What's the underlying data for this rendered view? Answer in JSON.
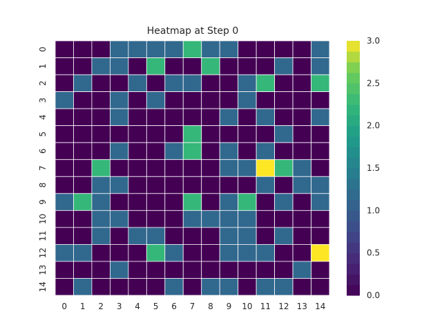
{
  "chart_data": {
    "type": "heatmap",
    "title": "Heatmap at Step 0",
    "xlabel": "",
    "ylabel": "",
    "x_categories": [
      "0",
      "1",
      "2",
      "3",
      "4",
      "5",
      "6",
      "7",
      "8",
      "9",
      "10",
      "11",
      "12",
      "13",
      "14"
    ],
    "y_categories": [
      "0",
      "1",
      "2",
      "3",
      "4",
      "5",
      "6",
      "7",
      "8",
      "9",
      "10",
      "11",
      "12",
      "13",
      "14"
    ],
    "values": [
      [
        0,
        0,
        0,
        1,
        1,
        1,
        1,
        2,
        1,
        1,
        0,
        0,
        0,
        0,
        1
      ],
      [
        0,
        0,
        1,
        1,
        0,
        2,
        0,
        0,
        2,
        0,
        0,
        0,
        1,
        0,
        1
      ],
      [
        0,
        1,
        0,
        0,
        1,
        0,
        1,
        1,
        0,
        0,
        1,
        2,
        0,
        0,
        2
      ],
      [
        1,
        0,
        0,
        1,
        0,
        1,
        0,
        0,
        0,
        0,
        1,
        0,
        0,
        0,
        0
      ],
      [
        0,
        0,
        0,
        1,
        0,
        0,
        0,
        0,
        0,
        1,
        0,
        1,
        0,
        0,
        1
      ],
      [
        0,
        0,
        0,
        0,
        0,
        0,
        0,
        2,
        0,
        0,
        0,
        0,
        1,
        0,
        0
      ],
      [
        0,
        0,
        0,
        1,
        0,
        0,
        1,
        2,
        0,
        1,
        0,
        1,
        0,
        0,
        0
      ],
      [
        0,
        0,
        2,
        0,
        0,
        0,
        0,
        0,
        0,
        1,
        1,
        3,
        2,
        1,
        0
      ],
      [
        0,
        0,
        1,
        1,
        0,
        0,
        0,
        0,
        0,
        0,
        0,
        1,
        0,
        1,
        1
      ],
      [
        1,
        2,
        1,
        0,
        0,
        0,
        0,
        2,
        0,
        1,
        2,
        0,
        1,
        0,
        1
      ],
      [
        0,
        0,
        1,
        1,
        0,
        0,
        0,
        1,
        1,
        1,
        1,
        0,
        0,
        0,
        0
      ],
      [
        0,
        0,
        1,
        0,
        1,
        1,
        0,
        0,
        0,
        1,
        1,
        0,
        1,
        0,
        0
      ],
      [
        1,
        1,
        0,
        0,
        0,
        2,
        1,
        0,
        0,
        1,
        1,
        1,
        0,
        0,
        3
      ],
      [
        0,
        0,
        0,
        1,
        0,
        0,
        0,
        0,
        0,
        0,
        0,
        0,
        0,
        1,
        0
      ],
      [
        0,
        1,
        0,
        0,
        0,
        0,
        1,
        0,
        1,
        1,
        0,
        1,
        1,
        0,
        0
      ]
    ],
    "colormap": "viridis",
    "vmin": 0,
    "vmax": 3,
    "colorbar_ticks": [
      "0.0",
      "0.5",
      "1.0",
      "1.5",
      "2.0",
      "2.5",
      "3.0"
    ],
    "colorbar_levels": 24,
    "cell_colors": {
      "0": "#440154",
      "1": "#31688e",
      "2": "#35b779",
      "3": "#fde725"
    },
    "grid_line_color": "#ffffff"
  }
}
